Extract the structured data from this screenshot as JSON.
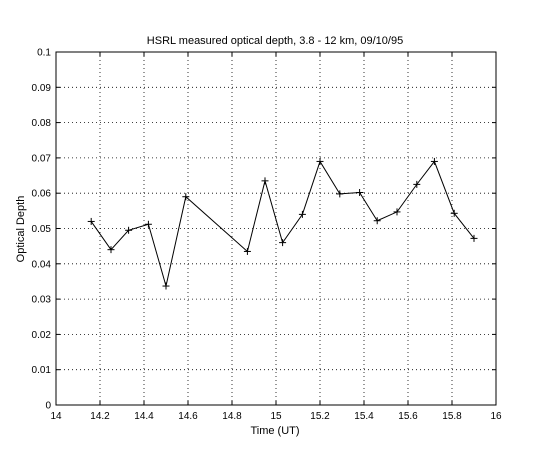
{
  "chart_data": {
    "type": "line",
    "title": "HSRL measured optical depth, 3.8 - 12 km, 09/10/95",
    "xlabel": "Time (UT)",
    "ylabel": "Optical Depth",
    "xlim": [
      14,
      16
    ],
    "ylim": [
      0,
      0.1
    ],
    "xticks": [
      14,
      14.2,
      14.4,
      14.6,
      14.8,
      15,
      15.2,
      15.4,
      15.6,
      15.8,
      16
    ],
    "xtick_labels": [
      "14",
      "14.2",
      "14.4",
      "14.6",
      "14.8",
      "15",
      "15.2",
      "15.4",
      "15.6",
      "15.8",
      "16"
    ],
    "yticks": [
      0,
      0.01,
      0.02,
      0.03,
      0.04,
      0.05,
      0.06,
      0.07,
      0.08,
      0.09,
      0.1
    ],
    "ytick_labels": [
      "0",
      "0.01",
      "0.02",
      "0.03",
      "0.04",
      "0.05",
      "0.06",
      "0.07",
      "0.08",
      "0.09",
      "0.1"
    ],
    "grid": true,
    "marker": "plus",
    "series": [
      {
        "x": [
          14.16,
          14.25,
          14.33,
          14.42,
          14.5,
          14.59,
          14.87,
          14.95,
          15.03,
          15.12,
          15.2,
          15.29,
          15.38,
          15.46,
          15.55,
          15.64,
          15.72,
          15.81,
          15.9
        ],
        "y": [
          0.052,
          0.044,
          0.0495,
          0.0512,
          0.0337,
          0.059,
          0.0435,
          0.0635,
          0.046,
          0.054,
          0.069,
          0.0598,
          0.0602,
          0.0522,
          0.0547,
          0.0625,
          0.069,
          0.0543,
          0.0472
        ]
      }
    ]
  }
}
